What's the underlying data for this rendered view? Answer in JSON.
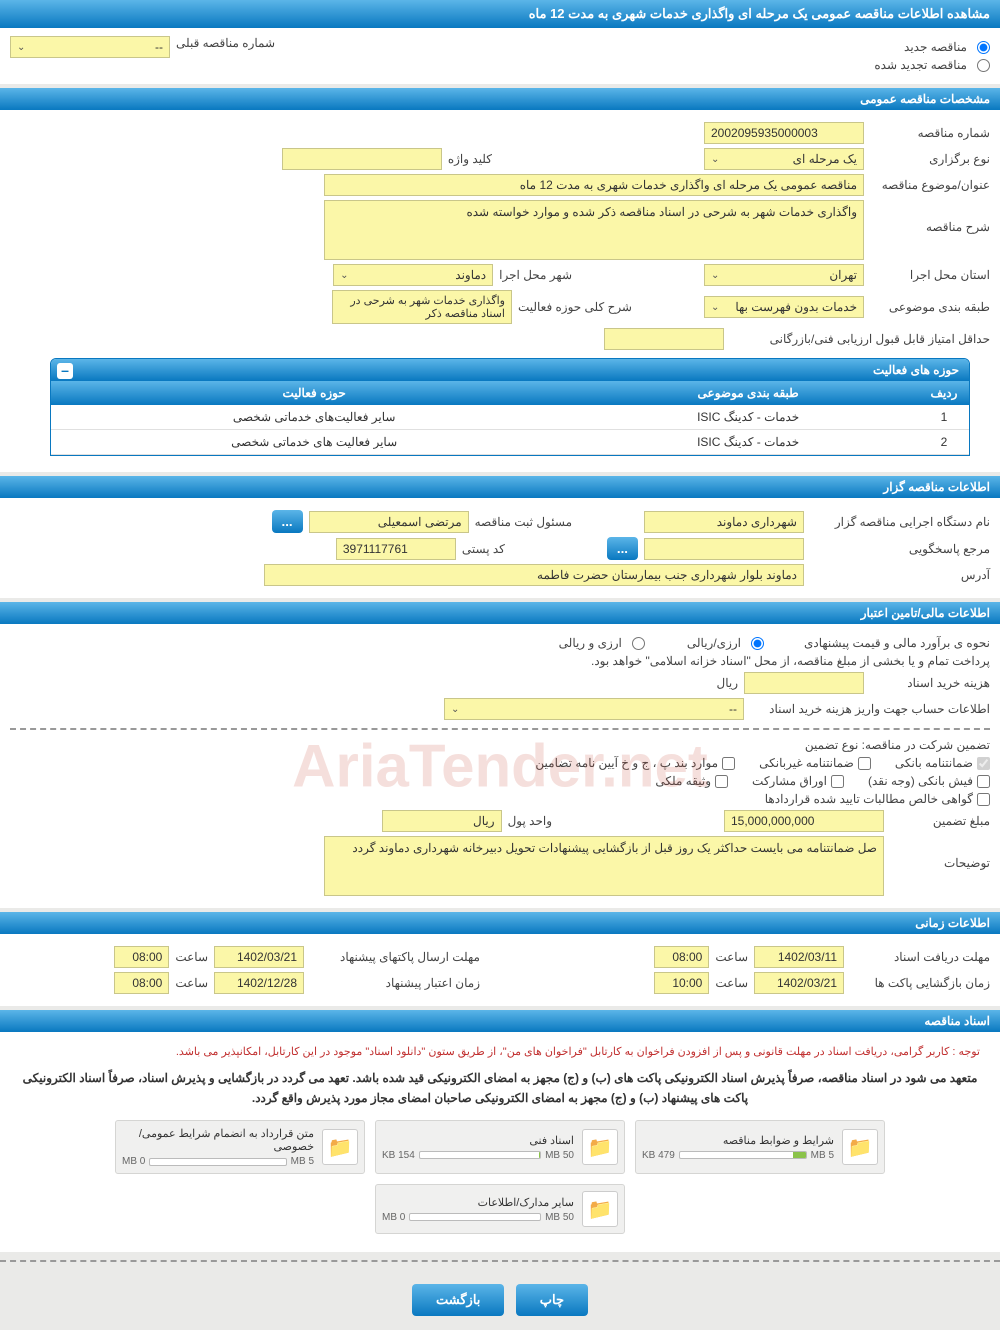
{
  "page_title": "مشاهده اطلاعات مناقصه عمومی یک مرحله ای واگذاری خدمات شهری به مدت 12 ماه",
  "top_radios": {
    "new_label": "مناقصه جدید",
    "renewed_label": "مناقصه تجدید شده",
    "prev_number_label": "شماره مناقصه قبلی",
    "prev_number_value": "--"
  },
  "sections": {
    "general": "مشخصات مناقصه عمومی",
    "organizer": "اطلاعات مناقصه گزار",
    "financial": "اطلاعات مالی/تامین اعتبار",
    "timing": "اطلاعات زمانی",
    "documents": "اسناد مناقصه"
  },
  "general": {
    "tender_no_label": "شماره مناقصه",
    "tender_no": "2002095935000003",
    "keyword_label": "کلید واژه",
    "keyword": "",
    "type_label": "نوع برگزاری",
    "type": "یک مرحله ای",
    "subject_label": "عنوان/موضوع مناقصه",
    "subject": "مناقصه عمومی یک مرحله ای واگذاری خدمات شهری به مدت 12 ماه",
    "desc_label": "شرح مناقصه",
    "desc": "واگذاری خدمات شهر به شرحی در اسناد مناقصه ذکر شده و موارد خواسته شده",
    "province_label": "استان محل اجرا",
    "province": "تهران",
    "city_label": "شهر محل اجرا",
    "city": "دماوند",
    "category_label": "طبقه بندی موضوعی",
    "category": "خدمات بدون فهرست بها",
    "scope_desc_label": "شرح کلی حوزه فعالیت",
    "scope_desc": "واگذاری خدمات شهر به شرحی در اسناد مناقصه ذکر",
    "min_score_label": "حداقل امتیاز قابل قبول ارزیابی فنی/بازرگانی",
    "min_score": ""
  },
  "activity_table": {
    "title": "حوزه های فعالیت",
    "headers": {
      "row": "ردیف",
      "category": "طبقه بندی موضوعی",
      "scope": "حوزه فعالیت"
    },
    "rows": [
      {
        "n": "1",
        "cat": "خدمات - کدینگ ISIC",
        "scope": "سایر فعالیت‌های خدماتی شخصی"
      },
      {
        "n": "2",
        "cat": "خدمات - کدینگ ISIC",
        "scope": "سایر فعالیت های خدماتی شخصی"
      }
    ]
  },
  "organizer": {
    "agency_label": "نام دستگاه اجرایی مناقصه گزار",
    "agency": "شهرداری دماوند",
    "registrar_label": "مسئول ثبت مناقصه",
    "registrar": "مرتضی اسمعیلی",
    "more": "...",
    "unit_label": "مرجع پاسخگویی",
    "unit": "",
    "unit_more": "...",
    "postal_label": "کد پستی",
    "postal": "3971117761",
    "address_label": "آدرس",
    "address": "دماوند بلوار شهرداری  جنب بیمارستان حضرت فاطمه"
  },
  "watermark": "AriaTender.net",
  "financial": {
    "estimate_label": "نحوه ی برآورد مالی و قیمت پیشنهادی",
    "currency_opt1": "ارزی/ریالی",
    "currency_opt2": "ارزی و ریالی",
    "treasury_note": "پرداخت تمام و یا بخشی از مبلغ مناقصه، از محل \"اسناد خزانه اسلامی\" خواهد بود.",
    "doc_fee_label": "هزینه خرید اسناد",
    "doc_fee": "",
    "riyal": "ریال",
    "account_label": "اطلاعات حساب جهت واریز هزینه خرید اسناد",
    "account_value": "--",
    "guarantee_intro": "تضمین شرکت در مناقصه:   نوع تضمین",
    "chk_bank_guarantee": "ضمانتنامه بانکی",
    "chk_nonbank_guarantee": "ضمانتنامه غیربانکی",
    "chk_bylaw": "موارد بند پ ، ج و خ آیین نامه تضامین",
    "chk_bank_receipt": "فیش بانکی (وجه نقد)",
    "chk_bonds": "اوراق مشارکت",
    "chk_property": "وثیقه ملکی",
    "chk_receivables": "گواهی خالص مطالبات تایید شده قراردادها",
    "amount_label": "مبلغ تضمین",
    "amount": "15,000,000,000",
    "unit_label": "واحد پول",
    "unit_value": "ریال",
    "notes_label": "توضیحات",
    "notes": "صل ضمانتنامه می بایست حداکثر یک روز قبل از بازگشایی پیشنهادات تحویل دبیرخانه شهرداری دماوند گردد"
  },
  "timing": {
    "receive_label": "مهلت دریافت اسناد",
    "receive_date": "1402/03/11",
    "time_label": "ساعت",
    "receive_time": "08:00",
    "submit_label": "مهلت ارسال پاکتهای پیشنهاد",
    "submit_date": "1402/03/21",
    "submit_time": "08:00",
    "open_label": "زمان بازگشایی پاکت ها",
    "open_date": "1402/03/21",
    "open_time": "10:00",
    "validity_label": "زمان اعتبار پیشنهاد",
    "validity_date": "1402/12/28",
    "validity_time": "08:00"
  },
  "documents": {
    "notice_red": "توجه : کاربر گرامی، دریافت اسناد در مهلت قانونی و پس از افزودن فراخوان به کارتابل \"فراخوان های من\"، از طریق ستون \"دانلود اسناد\" موجود در این کارتابل، امکانپذیر می باشد.",
    "notice_bold": "متعهد می شود در اسناد مناقصه، صرفاً پذیرش اسناد الکترونیکی پاکت های (ب) و (ج) مجهز به امضای الکترونیکی قید شده باشد. تعهد می گردد در بازگشایی و پذیرش اسناد، صرفاً اسناد الکترونیکی پاکت های پیشنهاد (ب) و (ج) مجهز به امضای الکترونیکی صاحبان امضای مجاز مورد پذیرش واقع گردد.",
    "files": [
      {
        "title": "شرایط و ضوابط مناقصه",
        "used": "479 KB",
        "max": "5 MB",
        "pct": 10
      },
      {
        "title": "اسناد فنی",
        "used": "154 KB",
        "max": "50 MB",
        "pct": 1
      },
      {
        "title": "متن قرارداد به انضمام شرایط عمومی/خصوصی",
        "used": "0 MB",
        "max": "5 MB",
        "pct": 0
      },
      {
        "title": "سایر مدارک/اطلاعات",
        "used": "0 MB",
        "max": "50 MB",
        "pct": 0
      }
    ]
  },
  "buttons": {
    "print": "چاپ",
    "back": "بازگشت"
  },
  "colors": {
    "header_grad_top": "#5bb5e8",
    "header_grad_bot": "#0978c0",
    "field_bg": "#fbf7a8",
    "field_border": "#c9c68a",
    "page_bg": "#eaeae8"
  }
}
